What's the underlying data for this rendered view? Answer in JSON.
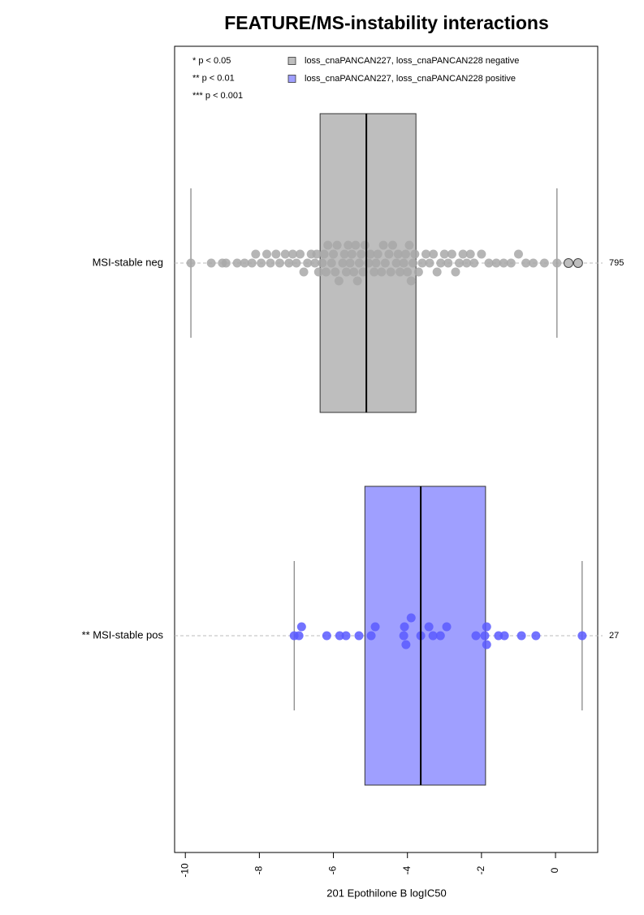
{
  "chart_data": {
    "type": "boxplot",
    "title": "FEATURE/MS-instability interactions",
    "xlabel": "201 Epothilone B logIC50",
    "xlim": [
      -10.29,
      1.14
    ],
    "xticks": [
      -10,
      -8,
      -6,
      -4,
      -2,
      0
    ],
    "annotations": [
      "* p < 0.05",
      "** p < 0.01",
      "*** p < 0.001"
    ],
    "legend": [
      {
        "label": "loss_cnaPANCAN227, loss_cnaPANCAN228 negative",
        "color": "#bebebe"
      },
      {
        "label": "loss_cnaPANCAN227, loss_cnaPANCAN228 positive",
        "color": "#9f9fff"
      }
    ],
    "groups": [
      {
        "name": "MSI-stable neg",
        "count": 795,
        "color": "#bebebe",
        "point_color": "#a8a8a8",
        "whisker_low": -9.85,
        "q1": -6.36,
        "median": -5.11,
        "q3": -3.77,
        "whisker_high": 0.04,
        "outliers": [
          0.35,
          0.61
        ],
        "points": [
          -9.85,
          -9.3,
          -9.0,
          -8.9,
          -8.6,
          -8.4,
          -8.2,
          -8.1,
          -7.95,
          -7.8,
          -7.7,
          -7.55,
          -7.45,
          -7.3,
          -7.2,
          -7.1,
          -7.0,
          -6.9,
          -6.8,
          -6.7,
          -6.6,
          -6.5,
          -6.45,
          -6.4,
          -6.3,
          -6.25,
          -6.2,
          -6.15,
          -6.05,
          -6.0,
          -5.95,
          -5.9,
          -5.85,
          -5.75,
          -5.7,
          -5.65,
          -5.6,
          -5.55,
          -5.5,
          -5.45,
          -5.4,
          -5.35,
          -5.3,
          -5.25,
          -5.2,
          -5.15,
          -5.05,
          -5.0,
          -4.9,
          -4.85,
          -4.8,
          -4.7,
          -4.65,
          -4.6,
          -4.5,
          -4.45,
          -4.4,
          -4.3,
          -4.25,
          -4.2,
          -4.1,
          -4.05,
          -4.0,
          -3.95,
          -3.9,
          -3.85,
          -3.8,
          -3.7,
          -3.6,
          -3.5,
          -3.4,
          -3.3,
          -3.2,
          -3.1,
          -3.0,
          -2.9,
          -2.8,
          -2.7,
          -2.6,
          -2.5,
          -2.4,
          -2.3,
          -2.2,
          -2.0,
          -1.8,
          -1.6,
          -1.4,
          -1.2,
          -1.0,
          -0.8,
          -0.6,
          -0.3,
          0.04
        ]
      },
      {
        "name": "** MSI-stable pos",
        "count": 27,
        "color": "#9f9fff",
        "point_color": "#5a5aff",
        "whisker_low": -7.06,
        "q1": -5.15,
        "median": -3.64,
        "q3": -1.89,
        "whisker_high": 0.72,
        "outliers": [],
        "points": [
          -7.06,
          -6.93,
          -6.86,
          -6.18,
          -5.83,
          -5.66,
          -5.31,
          -4.98,
          -4.87,
          -4.1,
          -4.08,
          -4.04,
          -3.9,
          -3.64,
          -3.42,
          -3.31,
          -3.11,
          -2.94,
          -2.15,
          -1.91,
          -1.86,
          -1.86,
          -1.54,
          -1.38,
          -0.92,
          -0.53,
          0.72
        ]
      }
    ]
  }
}
